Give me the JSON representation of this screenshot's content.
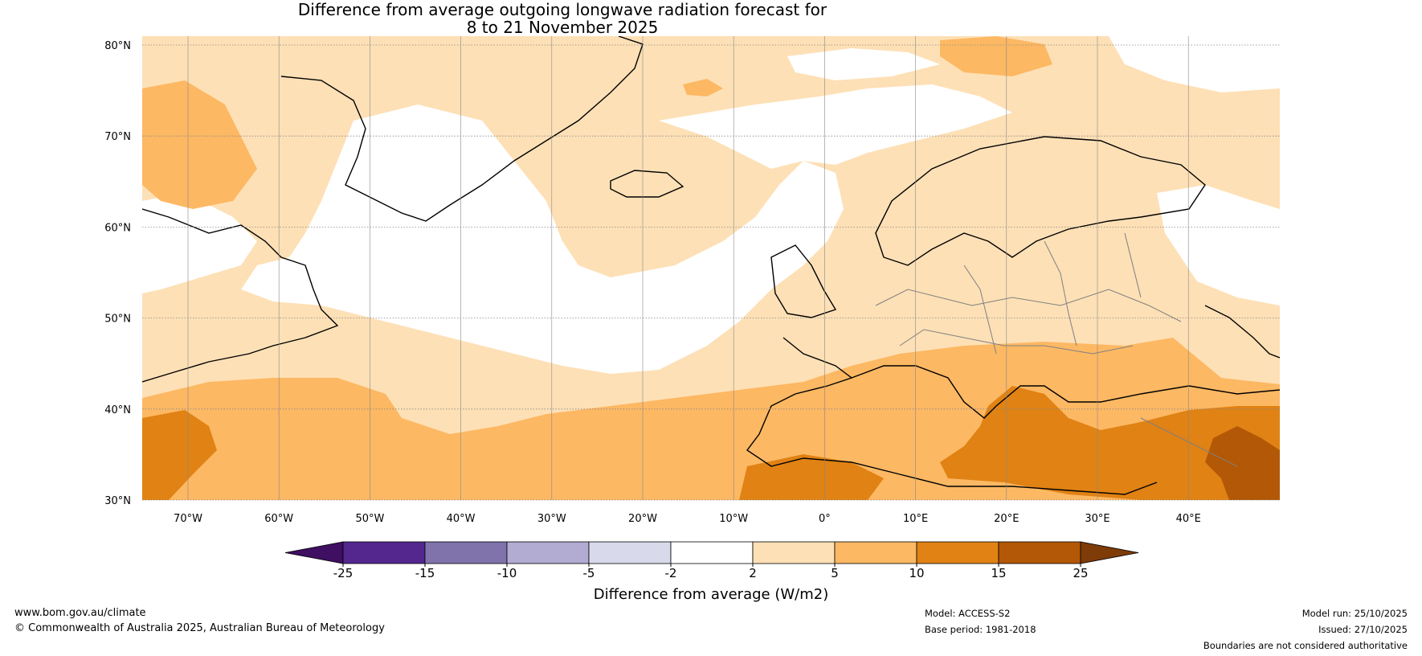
{
  "title": {
    "line1": "Difference from average outgoing longwave radiation forecast for",
    "line2": "8 to 21 November 2025"
  },
  "map": {
    "lat_labels": [
      "80°N",
      "70°N",
      "60°N",
      "50°N",
      "40°N",
      "30°N"
    ],
    "lon_labels": [
      "70°W",
      "60°W",
      "50°W",
      "40°W",
      "30°W",
      "20°W",
      "10°W",
      "0°",
      "10°E",
      "20°E",
      "30°E",
      "40°E"
    ]
  },
  "colorbar": {
    "boundaries": [
      "-25",
      "-15",
      "-10",
      "-5",
      "-2",
      "2",
      "5",
      "10",
      "15",
      "25"
    ],
    "colors": [
      "#3f0f61",
      "#54278f",
      "#8073ac",
      "#b2abd2",
      "#d8daeb",
      "#ffffff",
      "#fee0b6",
      "#fdb863",
      "#e08214",
      "#b35806",
      "#7f3b08"
    ],
    "label": "Difference from average (W/m2)"
  },
  "footer": {
    "website": "www.bom.gov.au/climate",
    "copyright": "© Commonwealth of Australia 2025, Australian Bureau of Meteorology",
    "model": "Model: ACCESS-S2",
    "base_period": "Base period: 1981-2018",
    "model_run": "Model run: 25/10/2025",
    "issued": "Issued: 27/10/2025",
    "boundaries_note": "Boundaries are not considered authoritative"
  }
}
